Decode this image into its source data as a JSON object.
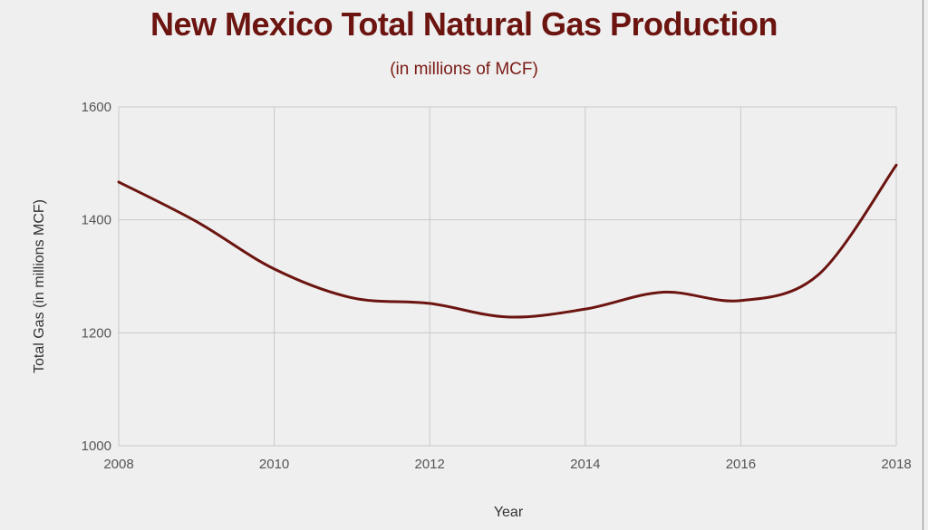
{
  "chart_data": {
    "type": "line",
    "title": "New Mexico Total Natural Gas Production",
    "subtitle": "(in millions of MCF)",
    "xlabel": "Year",
    "ylabel": "Total Gas (in millions MCF)",
    "xlim": [
      2008,
      2018
    ],
    "ylim": [
      1000,
      1600
    ],
    "x_ticks": [
      "2008",
      "2010",
      "2012",
      "2014",
      "2016",
      "2018"
    ],
    "y_ticks": [
      "1000",
      "1200",
      "1400",
      "1600"
    ],
    "grid": true,
    "legend": "none",
    "series": [
      {
        "x": [
          2008,
          2009,
          2010,
          2011,
          2012,
          2013,
          2014,
          2015,
          2016,
          2017,
          2018
        ],
        "values": [
          1467,
          1397,
          1313,
          1262,
          1252,
          1228,
          1242,
          1272,
          1257,
          1303,
          1497
        ]
      }
    ],
    "colors": {
      "line": "#6b1410",
      "grid": "#c8c8c8",
      "axis_text": "#555555",
      "title": "#6b1410"
    }
  }
}
